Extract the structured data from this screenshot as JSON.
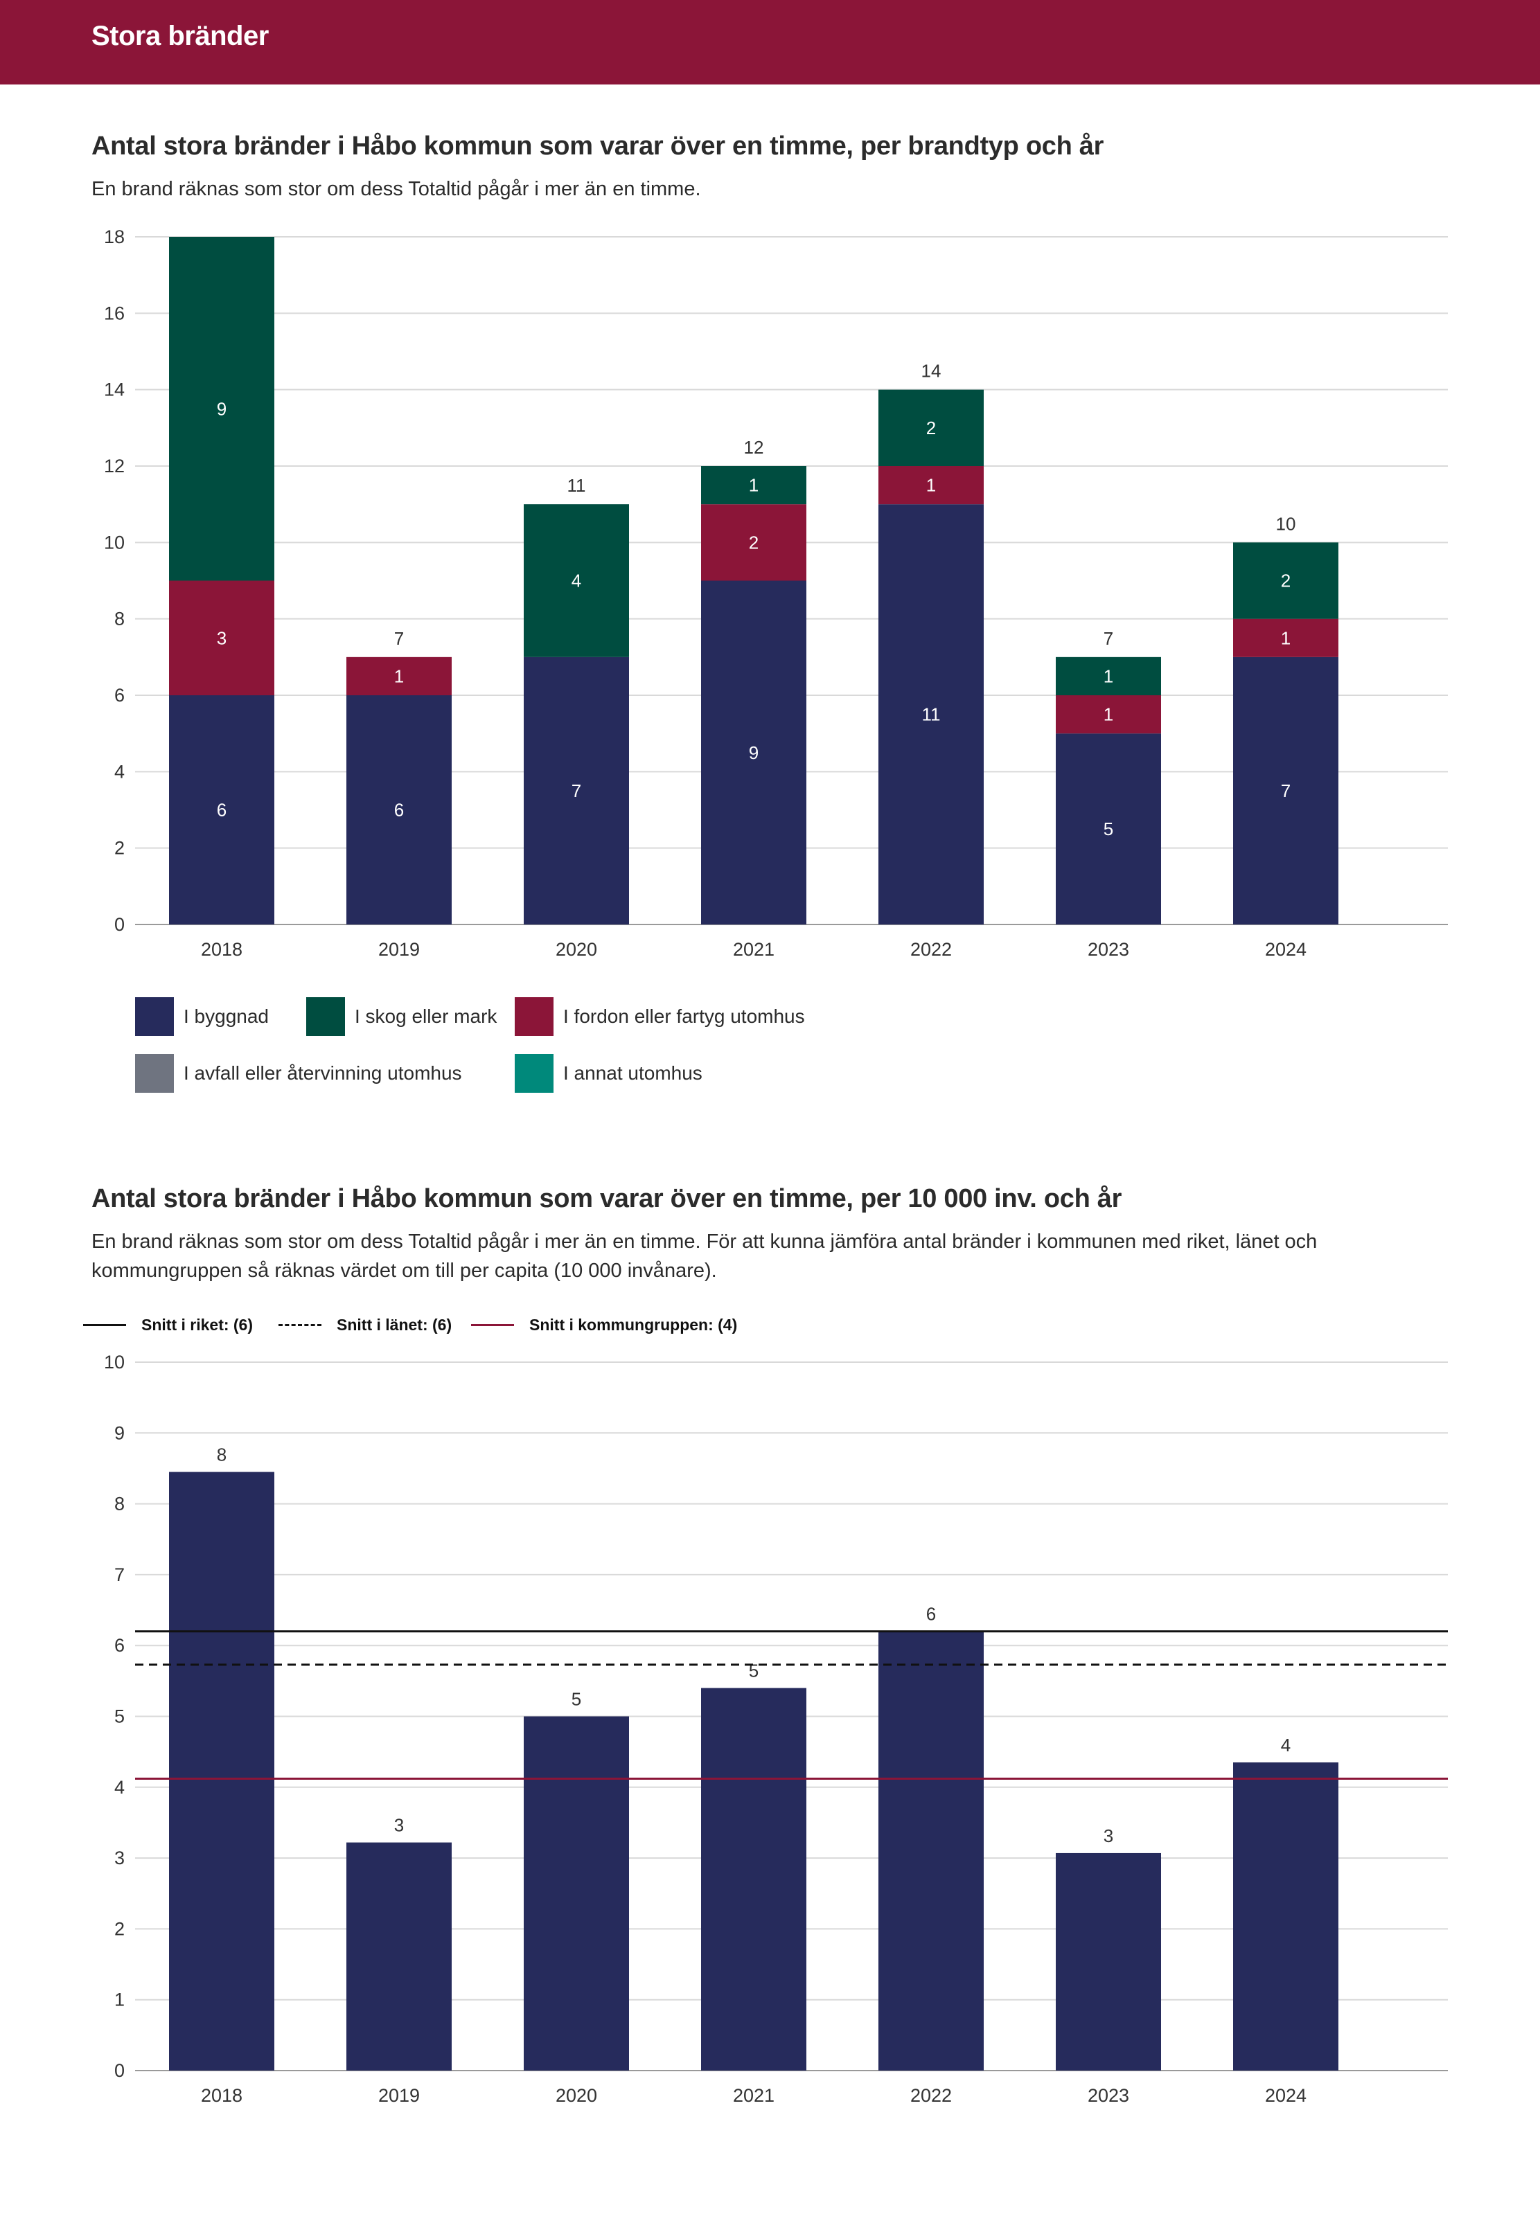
{
  "header": {
    "title": "Stora bränder"
  },
  "chart1": {
    "title": "Antal stora bränder i Håbo kommun som varar över en timme, per brandtyp och år",
    "description": "En brand räknas som stor om dess Totaltid pågår i mer än en timme."
  },
  "chart2": {
    "title": "Antal stora bränder i Håbo kommun som varar över en timme, per 10 000 inv. och år",
    "description": "En brand räknas som stor om dess Totaltid pågår i mer än en timme. För att kunna jämföra antal bränder i kommunen med riket, länet och kommungruppen så räknas värdet om till per capita (10 000 invånare)."
  },
  "legend1": [
    {
      "label": "I byggnad",
      "color": "#262b5c"
    },
    {
      "label": "I skog eller mark",
      "color": "#004d40"
    },
    {
      "label": "I fordon eller fartyg utomhus",
      "color": "#8b1538"
    },
    {
      "label": "I avfall eller återvinning utomhus",
      "color": "#6f7480"
    },
    {
      "label": "I annat utomhus",
      "color": "#00897b"
    }
  ],
  "ref_legend": [
    {
      "label": "Snitt i riket: (6)",
      "style": "solid",
      "color": "#111111"
    },
    {
      "label": "Snitt i länet: (6)",
      "style": "dashed",
      "color": "#111111"
    },
    {
      "label": "Snitt i kommungruppen: (4)",
      "style": "solid",
      "color": "#8b1538"
    }
  ],
  "chart_data": [
    {
      "type": "bar",
      "stacked": true,
      "title": "Antal stora bränder i Håbo kommun som varar över en timme, per brandtyp och år",
      "categories": [
        "2018",
        "2019",
        "2020",
        "2021",
        "2022",
        "2023",
        "2024"
      ],
      "series": [
        {
          "name": "I byggnad",
          "color": "#262b5c",
          "values": [
            6,
            6,
            7,
            9,
            11,
            5,
            7
          ]
        },
        {
          "name": "I fordon eller fartyg utomhus",
          "color": "#8b1538",
          "values": [
            3,
            1,
            0,
            2,
            1,
            1,
            1
          ]
        },
        {
          "name": "I skog eller mark",
          "color": "#004d40",
          "values": [
            9,
            0,
            4,
            1,
            2,
            1,
            2
          ]
        },
        {
          "name": "I avfall eller återvinning utomhus",
          "color": "#6f7480",
          "values": [
            0,
            0,
            0,
            0,
            0,
            0,
            0
          ]
        },
        {
          "name": "I annat utomhus",
          "color": "#00897b",
          "values": [
            0,
            0,
            0,
            0,
            0,
            0,
            0
          ]
        }
      ],
      "totals": [
        "",
        "7",
        "11",
        "12",
        "14",
        "7",
        "10"
      ],
      "yticks": [
        0,
        2,
        4,
        6,
        8,
        10,
        12,
        14,
        16,
        18
      ],
      "ylim": [
        0,
        18
      ]
    },
    {
      "type": "bar",
      "title": "Antal stora bränder i Håbo kommun som varar över en timme, per 10 000 inv. och år",
      "categories": [
        "2018",
        "2019",
        "2020",
        "2021",
        "2022",
        "2023",
        "2024"
      ],
      "values": [
        8.45,
        3.22,
        5.0,
        5.4,
        6.2,
        3.07,
        4.35
      ],
      "labels": [
        "8",
        "3",
        "5",
        "5",
        "6",
        "3",
        "4"
      ],
      "bar_color": "#262b5c",
      "reference_lines": [
        {
          "name": "Snitt i riket",
          "value": 6.2,
          "style": "solid",
          "color": "#111111"
        },
        {
          "name": "Snitt i länet",
          "value": 5.73,
          "style": "dashed",
          "color": "#111111"
        },
        {
          "name": "Snitt i kommungruppen",
          "value": 4.12,
          "style": "solid",
          "color": "#8b1538"
        }
      ],
      "yticks": [
        0,
        1,
        2,
        3,
        4,
        5,
        6,
        7,
        8,
        9,
        10
      ],
      "ylim": [
        0,
        10
      ]
    }
  ]
}
